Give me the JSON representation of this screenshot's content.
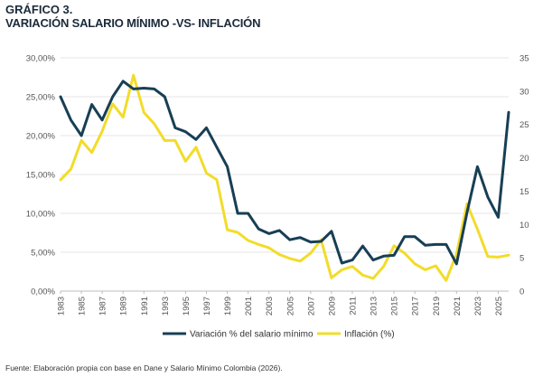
{
  "header": {
    "title": "GRÁFICO 3.",
    "subtitle": "VARIACIÓN SALARIO MÍNIMO -VS- INFLACIÓN"
  },
  "footer": {
    "source": "Fuente: Elaboración propia con base en Dane y Salario Mínimo Colombia (2026)."
  },
  "colors": {
    "salary": "#173f55",
    "inflation": "#f2dc2a",
    "grid": "#e6e6e6"
  },
  "chart_data": {
    "type": "line",
    "title": "VARIACIÓN SALARIO MÍNIMO -VS- INFLACIÓN",
    "x": [
      1983,
      1984,
      1985,
      1986,
      1987,
      1988,
      1989,
      1990,
      1991,
      1992,
      1993,
      1994,
      1995,
      1996,
      1997,
      1998,
      1999,
      2000,
      2001,
      2002,
      2003,
      2004,
      2005,
      2006,
      2007,
      2008,
      2009,
      2010,
      2011,
      2012,
      2013,
      2014,
      2015,
      2016,
      2017,
      2018,
      2019,
      2020,
      2021,
      2022,
      2023,
      2024,
      2025,
      2026
    ],
    "x_tick_labels": [
      "1983",
      "1985",
      "1987",
      "1989",
      "1991",
      "1993",
      "1995",
      "1997",
      "1999",
      "2001",
      "2003",
      "2005",
      "2007",
      "2009",
      "2011",
      "2013",
      "2015",
      "2017",
      "2019",
      "2021",
      "2023",
      "2025"
    ],
    "y_left": {
      "ylim": [
        0,
        30
      ],
      "ticks": [
        "0,00%",
        "5,00%",
        "10,00%",
        "15,00%",
        "20,00%",
        "25,00%",
        "30,00%"
      ]
    },
    "y_right": {
      "ylim": [
        0,
        35
      ],
      "ticks": [
        "0",
        "5",
        "10",
        "15",
        "20",
        "25",
        "30",
        "35"
      ]
    },
    "series": [
      {
        "name": "Variación % del salario mínimo",
        "axis": "left",
        "values": [
          25.0,
          22.0,
          20.0,
          24.0,
          22.0,
          25.0,
          27.0,
          26.0,
          26.1,
          26.0,
          25.0,
          21.0,
          20.5,
          19.5,
          21.0,
          18.5,
          16.0,
          10.0,
          10.0,
          8.0,
          7.4,
          7.8,
          6.6,
          6.9,
          6.3,
          6.4,
          7.7,
          3.6,
          4.0,
          5.8,
          4.0,
          4.5,
          4.6,
          7.0,
          7.0,
          5.9,
          6.0,
          6.0,
          3.5,
          10.1,
          16.0,
          12.1,
          9.5,
          23.0
        ]
      },
      {
        "name": "Inflación (%)",
        "axis": "right",
        "values": [
          16.7,
          18.3,
          22.6,
          20.8,
          24.0,
          28.1,
          26.1,
          32.4,
          26.8,
          25.1,
          22.6,
          22.6,
          19.5,
          21.6,
          17.7,
          16.7,
          9.2,
          8.8,
          7.6,
          7.0,
          6.5,
          5.5,
          4.9,
          4.5,
          5.7,
          7.7,
          2.0,
          3.2,
          3.7,
          2.4,
          1.9,
          3.7,
          6.8,
          5.7,
          4.1,
          3.2,
          3.8,
          1.6,
          5.6,
          13.1,
          9.3,
          5.2,
          5.1,
          5.4
        ]
      }
    ],
    "legend_position": "bottom",
    "grid": "horizontal"
  }
}
